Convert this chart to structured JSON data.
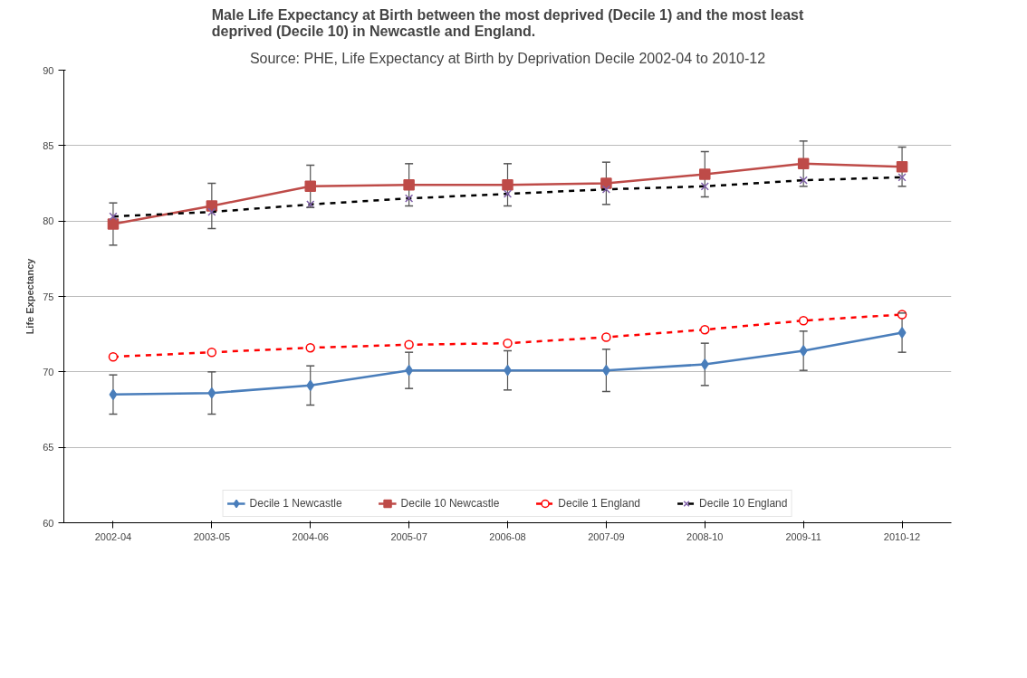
{
  "chart_data": {
    "type": "line",
    "title": "Male Life Expectancy at Birth between the most deprived (Decile 1) and the most least deprived (Decile 10) in Newcastle and England.",
    "subtitle": "Source: PHE, Life Expectancy at Birth by Deprivation Decile 2002-04 to 2010-12",
    "ylabel": "Life Expectancy",
    "categories": [
      "2002-04",
      "2003-05",
      "2004-06",
      "2005-07",
      "2006-08",
      "2007-09",
      "2008-10",
      "2009-11",
      "2010-12"
    ],
    "ylim": [
      60,
      90
    ],
    "yticks": [
      60,
      65,
      70,
      75,
      80,
      85,
      90
    ],
    "grid": "y",
    "legend": "bottom",
    "series": [
      {
        "name": "Decile 1 Newcastle",
        "color": "#4a7ebb",
        "marker": "diamond",
        "line_style": "solid",
        "values": [
          68.5,
          68.6,
          69.1,
          70.1,
          70.1,
          70.1,
          70.5,
          71.4,
          72.6
        ],
        "errors": [
          1.3,
          1.4,
          1.3,
          1.2,
          1.3,
          1.4,
          1.4,
          1.3,
          1.3
        ]
      },
      {
        "name": "Decile 10 Newcastle",
        "color": "#be4b48",
        "marker": "square",
        "line_style": "solid",
        "values": [
          79.8,
          81.0,
          82.3,
          82.4,
          82.4,
          82.5,
          83.1,
          83.8,
          83.6
        ],
        "errors": [
          1.4,
          1.5,
          1.4,
          1.4,
          1.4,
          1.4,
          1.5,
          1.5,
          1.3
        ]
      },
      {
        "name": "Decile 1 England",
        "color": "#ff0000",
        "marker": "circle",
        "line_style": "dashed",
        "values": [
          71.0,
          71.3,
          71.6,
          71.8,
          71.9,
          72.3,
          72.8,
          73.4,
          73.8
        ]
      },
      {
        "name": "Decile 10 England",
        "color": "#000000",
        "marker": "cross",
        "line_style": "dashed",
        "values": [
          80.3,
          80.6,
          81.1,
          81.5,
          81.8,
          82.1,
          82.3,
          82.7,
          82.9
        ]
      }
    ]
  }
}
